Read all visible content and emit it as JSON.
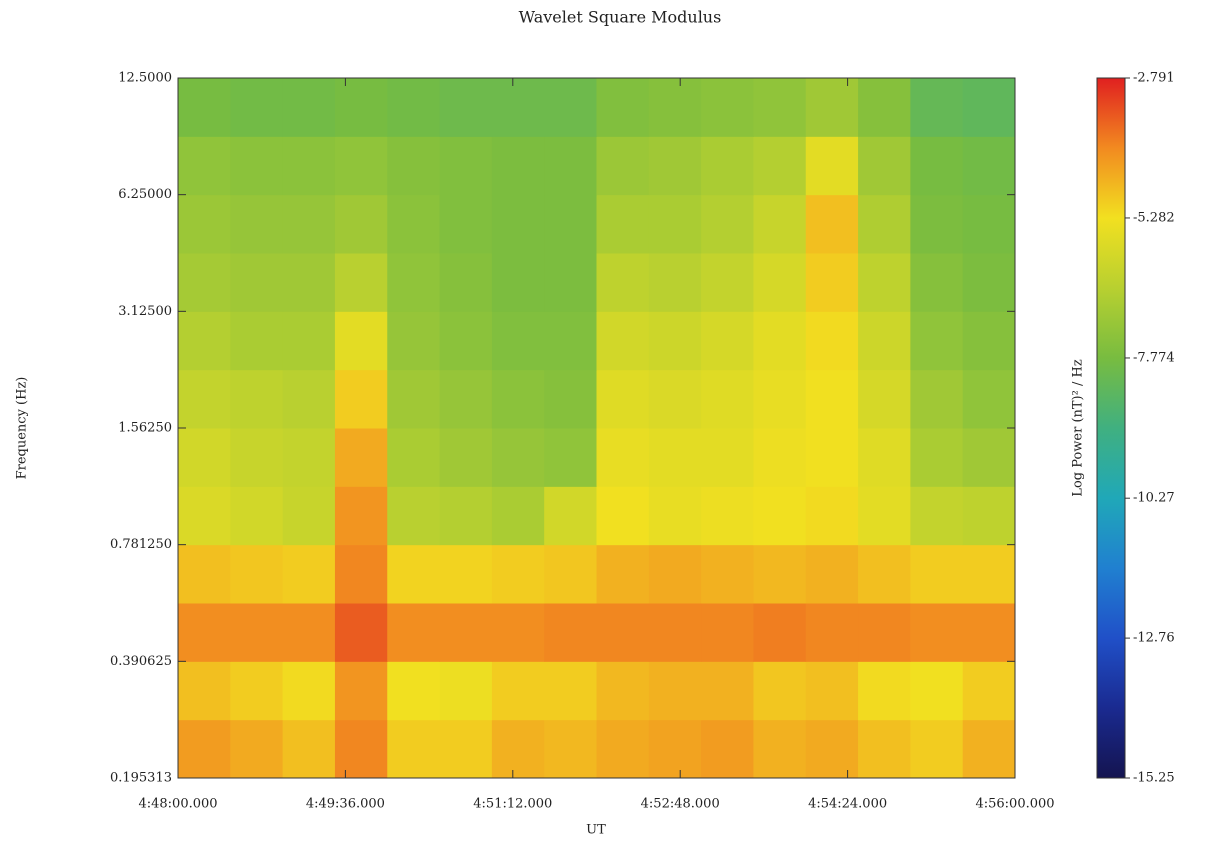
{
  "chart_data": {
    "type": "heatmap",
    "title": "Wavelet Square Modulus",
    "xlabel": "UT",
    "ylabel": "Frequency (Hz)",
    "colorbar_label": "Log Power (nT)² / Hz",
    "x": [
      "4:48:00.000",
      "4:48:30.000",
      "4:49:00.000",
      "4:49:30.000",
      "4:50:00.000",
      "4:50:30.000",
      "4:51:00.000",
      "4:51:30.000",
      "4:52:00.000",
      "4:52:30.000",
      "4:53:00.000",
      "4:53:30.000",
      "4:54:00.000",
      "4:54:30.000",
      "4:55:00.000",
      "4:55:30.000",
      "4:56:00.000"
    ],
    "y": [
      0.195313,
      0.276214,
      0.390625,
      0.552427,
      0.78125,
      1.104854,
      1.5625,
      2.209709,
      3.125,
      4.419417,
      6.25,
      8.838835,
      12.5
    ],
    "values": [
      [
        -4.3,
        -4.5,
        -4.8,
        -4.0,
        -5.0,
        -5.0,
        -4.6,
        -4.7,
        -4.5,
        -4.4,
        -4.3,
        -4.6,
        -4.5,
        -4.8,
        -5.0,
        -4.6
      ],
      [
        -4.8,
        -5.0,
        -5.2,
        -4.2,
        -5.3,
        -5.4,
        -5.0,
        -5.0,
        -4.7,
        -4.6,
        -4.6,
        -4.9,
        -4.8,
        -5.2,
        -5.3,
        -5.0
      ],
      [
        -4.1,
        -4.1,
        -4.1,
        -3.5,
        -4.1,
        -4.1,
        -4.1,
        -4.0,
        -4.0,
        -4.0,
        -4.0,
        -3.9,
        -4.0,
        -4.0,
        -4.1,
        -4.1
      ],
      [
        -4.8,
        -4.9,
        -5.0,
        -4.0,
        -5.1,
        -5.1,
        -5.0,
        -4.9,
        -4.6,
        -4.5,
        -4.6,
        -4.7,
        -4.6,
        -4.8,
        -5.0,
        -5.0
      ],
      [
        -5.8,
        -6.0,
        -6.2,
        -4.2,
        -6.5,
        -6.6,
        -6.8,
        -6.0,
        -5.3,
        -5.5,
        -5.4,
        -5.3,
        -5.2,
        -5.6,
        -6.3,
        -6.4
      ],
      [
        -6.0,
        -6.2,
        -6.3,
        -4.5,
        -6.8,
        -7.0,
        -7.2,
        -7.3,
        -5.5,
        -5.6,
        -5.6,
        -5.4,
        -5.3,
        -5.7,
        -6.8,
        -7.0
      ],
      [
        -6.3,
        -6.4,
        -6.5,
        -5.0,
        -7.0,
        -7.2,
        -7.4,
        -7.5,
        -5.7,
        -5.8,
        -5.7,
        -5.5,
        -5.3,
        -5.9,
        -7.0,
        -7.3
      ],
      [
        -6.6,
        -6.8,
        -6.8,
        -5.6,
        -7.2,
        -7.4,
        -7.6,
        -7.6,
        -6.0,
        -6.1,
        -5.9,
        -5.6,
        -5.2,
        -6.1,
        -7.3,
        -7.5
      ],
      [
        -6.9,
        -7.0,
        -7.0,
        -6.5,
        -7.3,
        -7.5,
        -7.7,
        -7.7,
        -6.4,
        -6.5,
        -6.3,
        -5.9,
        -5.0,
        -6.4,
        -7.5,
        -7.7
      ],
      [
        -7.1,
        -7.2,
        -7.2,
        -7.0,
        -7.4,
        -7.6,
        -7.7,
        -7.7,
        -6.8,
        -6.8,
        -6.6,
        -6.2,
        -4.8,
        -6.7,
        -7.7,
        -7.8
      ],
      [
        -7.3,
        -7.4,
        -7.4,
        -7.3,
        -7.5,
        -7.6,
        -7.7,
        -7.7,
        -7.1,
        -7.0,
        -6.8,
        -6.6,
        -5.6,
        -7.0,
        -7.8,
        -7.9
      ],
      [
        -7.8,
        -7.9,
        -7.9,
        -7.8,
        -7.9,
        -8.0,
        -8.0,
        -8.0,
        -7.6,
        -7.5,
        -7.4,
        -7.3,
        -7.0,
        -7.5,
        -8.2,
        -8.3
      ]
    ],
    "xlim": [
      "4:48:00.000",
      "4:56:00.000"
    ],
    "xticks": [
      "4:48:00.000",
      "4:49:36.000",
      "4:51:12.000",
      "4:52:48.000",
      "4:54:24.000",
      "4:56:00.000"
    ],
    "ylim": [
      0.195313,
      12.5
    ],
    "yscale": "log",
    "yticks": [
      0.195313,
      0.390625,
      {
        "value": 0.78125,
        "label": "0.781250"
      },
      {
        "value": 1.5625,
        "label": "1.56250"
      },
      {
        "value": 3.125,
        "label": "3.12500"
      },
      {
        "value": 6.25,
        "label": "6.25000"
      },
      {
        "value": 12.5,
        "label": "12.5000"
      }
    ],
    "zlim": [
      -15.25,
      -2.791
    ],
    "zticks": [
      -15.25,
      -12.76,
      -10.27,
      -7.774,
      -5.282,
      -2.791
    ],
    "colormap": [
      "#141450",
      "#1a2a90",
      "#2050c8",
      "#2080d0",
      "#20a8b8",
      "#40b080",
      "#78bc40",
      "#b8d030",
      "#f2e020",
      "#f28a20",
      "#e02020"
    ]
  }
}
